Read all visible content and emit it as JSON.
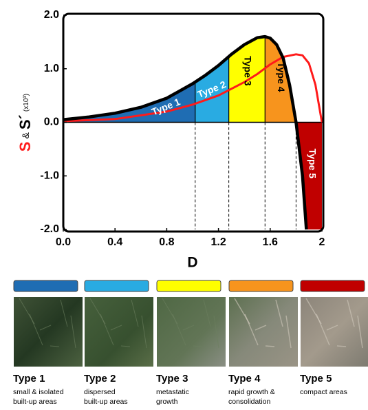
{
  "chart_data": {
    "type": "line",
    "xlabel": "D",
    "ylabel_parts": [
      "S",
      "&",
      "S´",
      "(x10³)"
    ],
    "xlim": [
      0,
      2
    ],
    "ylim": [
      -2,
      2
    ],
    "xticks": [
      {
        "value": 0,
        "label": "0.0"
      },
      0.4,
      0.8,
      1.2,
      1.6,
      2
    ],
    "yticks": [
      {
        "value": 2,
        "label": "2.0"
      },
      {
        "value": 1,
        "label": "1.0"
      },
      {
        "value": 0,
        "label": "0.0"
      },
      {
        "value": -1,
        "label": "-1.0"
      },
      {
        "value": -2,
        "label": "-2.0"
      }
    ],
    "series": [
      {
        "name": "S",
        "color": "#000000",
        "x": [
          0,
          0.2,
          0.4,
          0.6,
          0.8,
          1.0,
          1.1,
          1.2,
          1.3,
          1.4,
          1.5,
          1.56,
          1.6,
          1.65,
          1.7,
          1.75,
          1.8,
          1.85,
          1.88
        ],
        "values": [
          0.05,
          0.1,
          0.17,
          0.28,
          0.45,
          0.72,
          0.88,
          1.06,
          1.27,
          1.45,
          1.58,
          1.6,
          1.57,
          1.45,
          1.2,
          0.7,
          0,
          -1.0,
          -2.0
        ]
      },
      {
        "name": "S´",
        "color": "#ff1a1a",
        "x": [
          0,
          0.4,
          0.8,
          1.0,
          1.2,
          1.4,
          1.5,
          1.6,
          1.7,
          1.8,
          1.85,
          1.9,
          1.95,
          2.0
        ],
        "values": [
          0.02,
          0.06,
          0.2,
          0.33,
          0.5,
          0.75,
          0.9,
          1.08,
          1.22,
          1.27,
          1.25,
          1.1,
          0.7,
          0
        ]
      }
    ],
    "regions": [
      {
        "name": "Type 1",
        "color": "#1f6db3",
        "from": 0,
        "to": 1.02,
        "description": [
          "small & isolated",
          "built-up areas"
        ]
      },
      {
        "name": "Type 2",
        "color": "#29abe2",
        "from": 1.02,
        "to": 1.28,
        "description": [
          "dispersed",
          "built-up areas"
        ]
      },
      {
        "name": "Type 3",
        "color": "#ffff00",
        "from": 1.28,
        "to": 1.56,
        "description": [
          "metastatic",
          "growth"
        ]
      },
      {
        "name": "Type 4",
        "color": "#f7941d",
        "from": 1.56,
        "to": 1.8,
        "description": [
          "rapid growth &",
          "consolidation"
        ]
      },
      {
        "name": "Type 5",
        "color": "#c00000",
        "from": 1.8,
        "to": 2.0,
        "description": [
          "compact areas"
        ]
      }
    ]
  }
}
